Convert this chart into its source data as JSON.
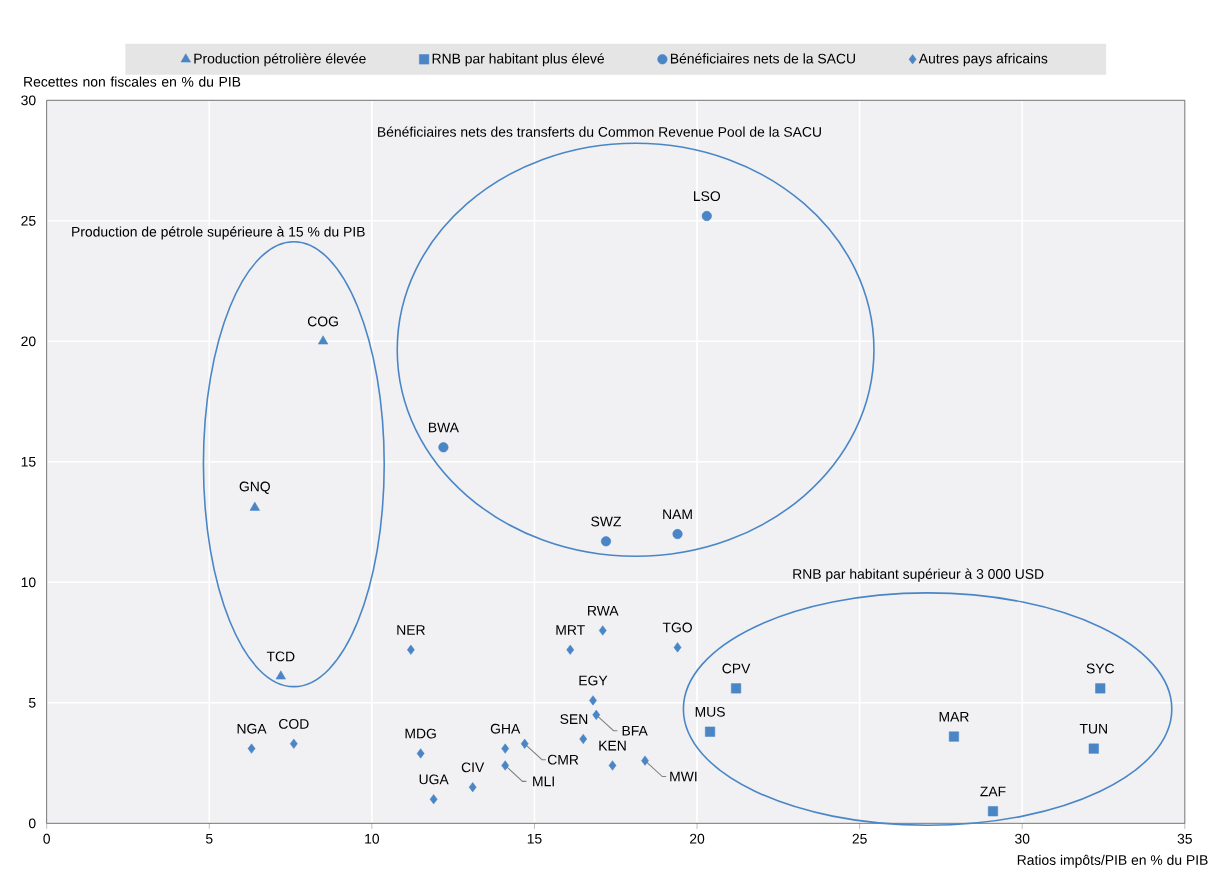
{
  "chart_data": {
    "type": "scatter",
    "xlabel": "Ratios impôts/PIB en % du PIB",
    "ylabel": "Recettes non fiscales en % du PIB",
    "xlim": [
      0,
      35
    ],
    "xticks": [
      0,
      5,
      10,
      15,
      20,
      25,
      30,
      35
    ],
    "ylim": [
      0,
      30
    ],
    "yticks": [
      0,
      5,
      10,
      15,
      20,
      25,
      30
    ],
    "grid": true,
    "legend": "top",
    "series": [
      {
        "name": "Production pétrolière élevée",
        "color": "#4a86c6",
        "marker": "triangle",
        "x": [
          8.5,
          6.4,
          7.2
        ],
        "values": [
          20.0,
          13.1,
          6.1
        ]
      },
      {
        "name": "RNB par habitant plus élevé",
        "color": "#4a86c6",
        "marker": "square",
        "x": [
          21.2,
          20.4,
          27.9,
          32.4,
          32.2,
          29.1
        ],
        "values": [
          5.6,
          3.8,
          3.6,
          5.6,
          3.1,
          0.5
        ]
      },
      {
        "name": "Bénéficiaires nets de la SACU",
        "color": "#4a86c6",
        "marker": "circle",
        "x": [
          20.3,
          12.2,
          17.2,
          19.4
        ],
        "values": [
          25.2,
          15.6,
          11.7,
          12.0
        ]
      },
      {
        "name": "Autres pays africains",
        "color": "#4a86c6",
        "marker": "diamond",
        "x": [
          6.3,
          7.6,
          11.2,
          11.5,
          11.9,
          13.1,
          14.1,
          14.1,
          14.7,
          16.1,
          17.1,
          16.8,
          16.9,
          16.5,
          17.4,
          18.4,
          19.4
        ],
        "values": [
          3.1,
          3.3,
          7.2,
          2.9,
          1.0,
          1.5,
          3.1,
          2.4,
          3.3,
          7.2,
          8.0,
          5.1,
          4.5,
          3.5,
          2.4,
          2.6,
          7.3
        ]
      }
    ],
    "annotations": [
      "Production de pétrole supérieure à 15 % du PIB",
      "Bénéficiaires nets des transferts du Common Revenue Pool de la SACU",
      "RNB par habitant supérieur à 3 000 USD",
      {
        "text": "COG",
        "x": 8.5,
        "y": 20.0
      },
      {
        "text": "GNQ",
        "x": 6.4,
        "y": 13.1
      },
      {
        "text": "TCD",
        "x": 7.2,
        "y": 6.1
      },
      {
        "text": "CPV",
        "x": 21.2,
        "y": 5.6
      },
      {
        "text": "MUS",
        "x": 20.4,
        "y": 3.8
      },
      {
        "text": "MAR",
        "x": 27.9,
        "y": 3.6
      },
      {
        "text": "SYC",
        "x": 32.4,
        "y": 5.6
      },
      {
        "text": "TUN",
        "x": 32.2,
        "y": 3.1
      },
      {
        "text": "ZAF",
        "x": 29.1,
        "y": 0.5
      },
      {
        "text": "LSO",
        "x": 20.3,
        "y": 25.2
      },
      {
        "text": "BWA",
        "x": 12.2,
        "y": 15.6
      },
      {
        "text": "SWZ",
        "x": 17.2,
        "y": 11.7
      },
      {
        "text": "NAM",
        "x": 19.4,
        "y": 12.0
      },
      {
        "text": "NGA",
        "x": 6.3,
        "y": 3.1
      },
      {
        "text": "COD",
        "x": 7.6,
        "y": 3.3
      },
      {
        "text": "NER",
        "x": 11.2,
        "y": 7.2
      },
      {
        "text": "MDG",
        "x": 11.5,
        "y": 2.9
      },
      {
        "text": "UGA",
        "x": 11.9,
        "y": 1.0
      },
      {
        "text": "CIV",
        "x": 13.1,
        "y": 1.5
      },
      {
        "text": "GHA",
        "x": 14.1,
        "y": 3.1
      },
      {
        "text": "MLI",
        "x": 14.1,
        "y": 2.4
      },
      {
        "text": "CMR",
        "x": 14.7,
        "y": 3.3
      },
      {
        "text": "MRT",
        "x": 16.1,
        "y": 7.2
      },
      {
        "text": "RWA",
        "x": 17.1,
        "y": 8.0
      },
      {
        "text": "EGY",
        "x": 16.8,
        "y": 5.1
      },
      {
        "text": "BFA",
        "x": 16.9,
        "y": 4.5
      },
      {
        "text": "SEN",
        "x": 16.5,
        "y": 3.5
      },
      {
        "text": "KEN",
        "x": 17.4,
        "y": 2.4
      },
      {
        "text": "MWI",
        "x": 18.4,
        "y": 2.6
      },
      {
        "text": "TGO",
        "x": 19.4,
        "y": 7.3
      }
    ]
  }
}
